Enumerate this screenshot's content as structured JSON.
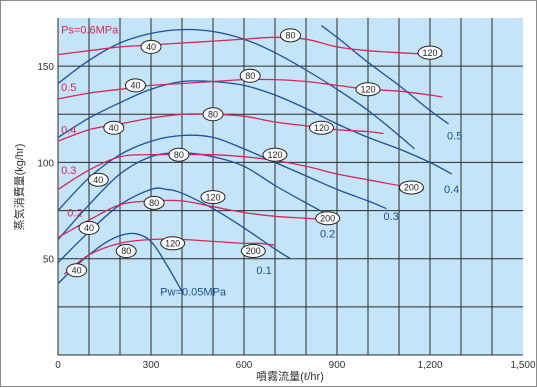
{
  "chart_data": {
    "type": "line",
    "title": "",
    "xlabel": "噴霧流量(ℓ/hr)",
    "ylabel": "蒸気消費量(kg/hr)",
    "xlim": [
      0,
      1500
    ],
    "ylim": [
      0,
      175
    ],
    "x_ticks": [
      0,
      300,
      600,
      900,
      1200,
      1500
    ],
    "x_tick_labels": [
      "0",
      "300",
      "600",
      "900",
      "1,200",
      "1,500"
    ],
    "y_ticks": [
      50,
      100,
      150
    ],
    "y_tick_labels": [
      "50",
      "100",
      "150"
    ],
    "grid": true,
    "colors": {
      "plot_bg": "#c4e5f7",
      "grid": "#2b2b2b",
      "pw_curve": "#1e4f9c",
      "ps_curve": "#d6265a",
      "pw_label": "#1e4f9c",
      "ps_label": "#d6265a",
      "oval_fill": "#ffffff",
      "oval_stroke": "#222222"
    },
    "pw_series": [
      {
        "name": "0.05",
        "label": "Pw=0.05MPa",
        "points": [
          [
            0,
            37
          ],
          [
            50,
            45
          ],
          [
            100,
            52
          ],
          [
            150,
            58
          ],
          [
            200,
            62
          ],
          [
            250,
            63
          ],
          [
            300,
            59
          ],
          [
            350,
            47
          ],
          [
            400,
            33
          ]
        ]
      },
      {
        "name": "0.1",
        "label": "0.1",
        "points": [
          [
            0,
            48
          ],
          [
            100,
            64
          ],
          [
            200,
            78
          ],
          [
            300,
            86
          ],
          [
            350,
            86
          ],
          [
            400,
            84
          ],
          [
            500,
            76
          ],
          [
            600,
            66
          ],
          [
            700,
            55
          ],
          [
            750,
            50
          ]
        ]
      },
      {
        "name": "0.2",
        "label": "0.2",
        "points": [
          [
            0,
            60
          ],
          [
            100,
            78
          ],
          [
            200,
            94
          ],
          [
            300,
            103
          ],
          [
            400,
            105
          ],
          [
            500,
            103
          ],
          [
            600,
            98
          ],
          [
            700,
            88
          ],
          [
            800,
            79
          ],
          [
            880,
            72
          ]
        ]
      },
      {
        "name": "0.3",
        "label": "0.3",
        "points": [
          [
            0,
            75
          ],
          [
            100,
            92
          ],
          [
            200,
            104
          ],
          [
            300,
            111
          ],
          [
            400,
            114
          ],
          [
            500,
            113
          ],
          [
            600,
            107
          ],
          [
            700,
            100
          ],
          [
            800,
            93
          ],
          [
            900,
            86
          ],
          [
            1000,
            80
          ],
          [
            1060,
            76
          ]
        ]
      },
      {
        "name": "0.4",
        "label": "0.4",
        "points": [
          [
            0,
            113
          ],
          [
            100,
            123
          ],
          [
            200,
            131
          ],
          [
            300,
            138
          ],
          [
            400,
            142
          ],
          [
            500,
            142
          ],
          [
            600,
            140
          ],
          [
            700,
            135
          ],
          [
            800,
            128
          ],
          [
            900,
            120
          ],
          [
            1000,
            113
          ],
          [
            1100,
            107
          ],
          [
            1200,
            100
          ],
          [
            1270,
            94
          ]
        ]
      },
      {
        "name": "0.5",
        "label": "0.5",
        "points": [
          [
            850,
            171
          ],
          [
            900,
            165
          ],
          [
            1000,
            152
          ],
          [
            1100,
            140
          ],
          [
            1200,
            127
          ],
          [
            1260,
            120
          ]
        ]
      },
      {
        "name": "0.6",
        "label": "",
        "points": [
          [
            0,
            141
          ],
          [
            100,
            153
          ],
          [
            200,
            162
          ],
          [
            300,
            167
          ],
          [
            400,
            169
          ],
          [
            500,
            168
          ],
          [
            600,
            164
          ],
          [
            700,
            157
          ],
          [
            800,
            148
          ],
          [
            900,
            138
          ],
          [
            1000,
            127
          ],
          [
            1100,
            114
          ],
          [
            1150,
            107
          ]
        ]
      }
    ],
    "ps_series": [
      {
        "name": "0.05",
        "label": "",
        "points": [
          [
            20,
            42
          ],
          [
            100,
            52
          ],
          [
            200,
            58
          ],
          [
            300,
            60
          ],
          [
            400,
            60
          ],
          [
            500,
            59
          ],
          [
            600,
            58
          ],
          [
            650,
            58
          ],
          [
            700,
            57
          ]
        ]
      },
      {
        "name": "0.1",
        "label": "",
        "points": [
          [
            0,
            61
          ],
          [
            100,
            70
          ],
          [
            200,
            78
          ],
          [
            300,
            80
          ],
          [
            400,
            80
          ],
          [
            500,
            77
          ],
          [
            600,
            74
          ],
          [
            700,
            72
          ],
          [
            800,
            71
          ],
          [
            900,
            70
          ]
        ]
      },
      {
        "name": "0.2",
        "label": "0.2",
        "points": [
          [
            0,
            86
          ],
          [
            100,
            96
          ],
          [
            200,
            103
          ],
          [
            300,
            104
          ],
          [
            400,
            104
          ],
          [
            500,
            104
          ],
          [
            600,
            103
          ],
          [
            700,
            101
          ],
          [
            800,
            98
          ],
          [
            900,
            94
          ],
          [
            1000,
            91
          ],
          [
            1100,
            88
          ],
          [
            1180,
            86
          ]
        ]
      },
      {
        "name": "0.3",
        "label": "0.3",
        "points": [
          [
            0,
            111
          ],
          [
            100,
            117
          ],
          [
            200,
            120
          ],
          [
            300,
            123
          ],
          [
            400,
            125
          ],
          [
            500,
            125
          ],
          [
            600,
            124
          ],
          [
            700,
            121
          ],
          [
            800,
            119
          ],
          [
            900,
            117
          ],
          [
            1000,
            116
          ],
          [
            1050,
            115
          ]
        ]
      },
      {
        "name": "0.4",
        "label": "0.4",
        "points": [
          [
            0,
            133
          ],
          [
            100,
            136
          ],
          [
            200,
            138
          ],
          [
            300,
            140
          ],
          [
            400,
            141
          ],
          [
            500,
            142
          ],
          [
            600,
            143
          ],
          [
            700,
            143
          ],
          [
            800,
            142
          ],
          [
            900,
            140
          ],
          [
            1000,
            138
          ],
          [
            1100,
            137
          ],
          [
            1200,
            135
          ],
          [
            1240,
            134
          ]
        ]
      },
      {
        "name": "0.5",
        "label": "0.5",
        "points": [
          [
            0,
            156
          ],
          [
            100,
            158
          ],
          [
            200,
            160
          ],
          [
            300,
            161
          ],
          [
            400,
            162
          ],
          [
            500,
            163
          ],
          [
            600,
            164
          ],
          [
            700,
            165
          ],
          [
            800,
            164
          ],
          [
            900,
            160
          ],
          [
            1000,
            158
          ],
          [
            1100,
            157
          ],
          [
            1200,
            156
          ],
          [
            1240,
            155
          ]
        ]
      },
      {
        "name": "0.6",
        "label": "Ps=0.6MPa",
        "points": []
      }
    ],
    "flow_markers": [
      {
        "text": "40",
        "x": 60,
        "y": 44
      },
      {
        "text": "80",
        "x": 220,
        "y": 54
      },
      {
        "text": "120",
        "x": 370,
        "y": 58
      },
      {
        "text": "200",
        "x": 630,
        "y": 54
      },
      {
        "text": "40",
        "x": 100,
        "y": 66
      },
      {
        "text": "80",
        "x": 310,
        "y": 79
      },
      {
        "text": "120",
        "x": 500,
        "y": 82
      },
      {
        "text": "200",
        "x": 870,
        "y": 71
      },
      {
        "text": "40",
        "x": 130,
        "y": 91
      },
      {
        "text": "80",
        "x": 390,
        "y": 104
      },
      {
        "text": "120",
        "x": 700,
        "y": 104
      },
      {
        "text": "200",
        "x": 1140,
        "y": 87
      },
      {
        "text": "40",
        "x": 180,
        "y": 118
      },
      {
        "text": "80",
        "x": 500,
        "y": 125
      },
      {
        "text": "120",
        "x": 850,
        "y": 118
      },
      {
        "text": "40",
        "x": 250,
        "y": 140
      },
      {
        "text": "80",
        "x": 620,
        "y": 145
      },
      {
        "text": "120",
        "x": 1000,
        "y": 138
      },
      {
        "text": "40",
        "x": 300,
        "y": 160
      },
      {
        "text": "80",
        "x": 750,
        "y": 166
      },
      {
        "text": "120",
        "x": 1200,
        "y": 157
      }
    ],
    "series_labels": [
      {
        "text": "Pw=0.05MPa",
        "x": 330,
        "y": 31,
        "kind": "pw"
      },
      {
        "text": "0.1",
        "x": 640,
        "y": 42,
        "kind": "pw"
      },
      {
        "text": "0.2",
        "x": 845,
        "y": 61,
        "kind": "pw"
      },
      {
        "text": "0.3",
        "x": 1050,
        "y": 70,
        "kind": "pw"
      },
      {
        "text": "0.4",
        "x": 1245,
        "y": 84,
        "kind": "pw"
      },
      {
        "text": "0.5",
        "x": 1255,
        "y": 112,
        "kind": "pw"
      },
      {
        "text": "Ps=0.6MPa",
        "x": 10,
        "y": 167,
        "kind": "ps"
      },
      {
        "text": "0.5",
        "x": 10,
        "y": 137,
        "kind": "ps"
      },
      {
        "text": "0.4",
        "x": 10,
        "y": 115,
        "kind": "ps"
      },
      {
        "text": "0.3",
        "x": 10,
        "y": 94,
        "kind": "ps"
      },
      {
        "text": "0.2",
        "x": 30,
        "y": 72,
        "kind": "ps"
      }
    ]
  }
}
